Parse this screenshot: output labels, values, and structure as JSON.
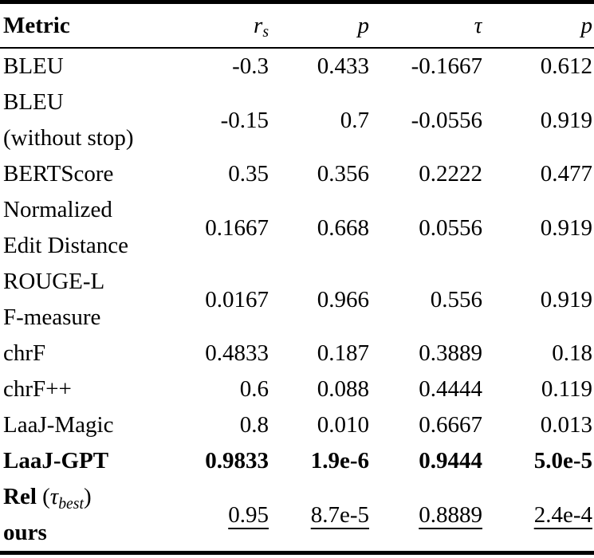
{
  "page": {
    "background": "#ffffff",
    "text_color": "#000000",
    "rule_color": "#000000"
  },
  "chart_data": {
    "type": "table",
    "title": "",
    "columns": [
      "Metric",
      "r_s",
      "p",
      "tau",
      "p"
    ],
    "rows_flat": [
      [
        "BLEU",
        "-0.3",
        "0.433",
        "-0.1667",
        "0.612"
      ],
      [
        "BLEU (without stop)",
        "-0.15",
        "0.7",
        "-0.0556",
        "0.919"
      ],
      [
        "BERTScore",
        "0.35",
        "0.356",
        "0.2222",
        "0.477"
      ],
      [
        "Normalized Edit Distance",
        "0.1667",
        "0.668",
        "0.0556",
        "0.919"
      ],
      [
        "ROUGE-L F-measure",
        "0.0167",
        "0.966",
        "0.556",
        "0.919"
      ],
      [
        "chrF",
        "0.4833",
        "0.187",
        "0.3889",
        "0.18"
      ],
      [
        "chrF++",
        "0.6",
        "0.088",
        "0.4444",
        "0.119"
      ],
      [
        "LaaJ-Magic",
        "0.8",
        "0.010",
        "0.6667",
        "0.013"
      ],
      [
        "LaaJ-GPT",
        "0.9833",
        "1.9e-6",
        "0.9444",
        "5.0e-5"
      ],
      [
        "Rel (tau_best) ours",
        "0.95",
        "8.7e-5",
        "0.8889",
        "2.4e-4"
      ]
    ]
  },
  "table": {
    "header": {
      "metric_label": "Metric",
      "value_cols": [
        {
          "name": "rs",
          "segments": [
            {
              "text": "r",
              "italic": true
            },
            {
              "text": "s",
              "italic": true,
              "sub": true
            }
          ]
        },
        {
          "name": "p1",
          "segments": [
            {
              "text": "p",
              "italic": true
            }
          ]
        },
        {
          "name": "tau",
          "segments": [
            {
              "text": "τ",
              "italic": true
            }
          ]
        },
        {
          "name": "p2",
          "segments": [
            {
              "text": "p",
              "italic": true
            }
          ]
        }
      ]
    },
    "rows": [
      {
        "metric_lines": [
          {
            "segments": [
              {
                "text": "BLEU"
              }
            ]
          }
        ],
        "values": [
          "-0.3",
          "0.433",
          "-0.1667",
          "0.612"
        ],
        "bold": false,
        "underline": false
      },
      {
        "metric_lines": [
          {
            "segments": [
              {
                "text": "BLEU"
              }
            ]
          },
          {
            "segments": [
              {
                "text": "(without stop)"
              }
            ]
          }
        ],
        "values": [
          "-0.15",
          "0.7",
          "-0.0556",
          "0.919"
        ],
        "bold": false,
        "underline": false
      },
      {
        "metric_lines": [
          {
            "segments": [
              {
                "text": "BERTScore"
              }
            ]
          }
        ],
        "values": [
          "0.35",
          "0.356",
          "0.2222",
          "0.477"
        ],
        "bold": false,
        "underline": false
      },
      {
        "metric_lines": [
          {
            "segments": [
              {
                "text": "Normalized"
              }
            ]
          },
          {
            "segments": [
              {
                "text": "Edit Distance"
              }
            ]
          }
        ],
        "values": [
          "0.1667",
          "0.668",
          "0.0556",
          "0.919"
        ],
        "bold": false,
        "underline": false
      },
      {
        "metric_lines": [
          {
            "segments": [
              {
                "text": "ROUGE-L"
              }
            ]
          },
          {
            "segments": [
              {
                "text": "F-measure"
              }
            ]
          }
        ],
        "values": [
          "0.0167",
          "0.966",
          "0.556",
          "0.919"
        ],
        "bold": false,
        "underline": false
      },
      {
        "metric_lines": [
          {
            "segments": [
              {
                "text": "chrF"
              }
            ]
          }
        ],
        "values": [
          "0.4833",
          "0.187",
          "0.3889",
          "0.18"
        ],
        "bold": false,
        "underline": false
      },
      {
        "metric_lines": [
          {
            "segments": [
              {
                "text": "chrF++"
              }
            ]
          }
        ],
        "values": [
          "0.6",
          "0.088",
          "0.4444",
          "0.119"
        ],
        "bold": false,
        "underline": false
      },
      {
        "metric_lines": [
          {
            "segments": [
              {
                "text": "LaaJ-Magic"
              }
            ]
          }
        ],
        "values": [
          "0.8",
          "0.010",
          "0.6667",
          "0.013"
        ],
        "bold": false,
        "underline": false
      },
      {
        "metric_lines": [
          {
            "segments": [
              {
                "text": "LaaJ-GPT"
              }
            ]
          }
        ],
        "values": [
          "0.9833",
          "1.9e-6",
          "0.9444",
          "5.0e-5"
        ],
        "bold": true,
        "underline": false
      },
      {
        "metric_lines": [
          {
            "segments": [
              {
                "text": "Rel",
                "bold": true
              },
              {
                "text": " ("
              },
              {
                "text": "τ",
                "italic": true
              },
              {
                "text": "best",
                "italic": true,
                "sub": true
              },
              {
                "text": ")"
              }
            ]
          },
          {
            "segments": [
              {
                "text": "ours",
                "bold": true
              }
            ]
          }
        ],
        "values": [
          "0.95",
          "8.7e-5",
          "0.8889",
          "2.4e-4"
        ],
        "bold": false,
        "underline": true
      }
    ]
  }
}
